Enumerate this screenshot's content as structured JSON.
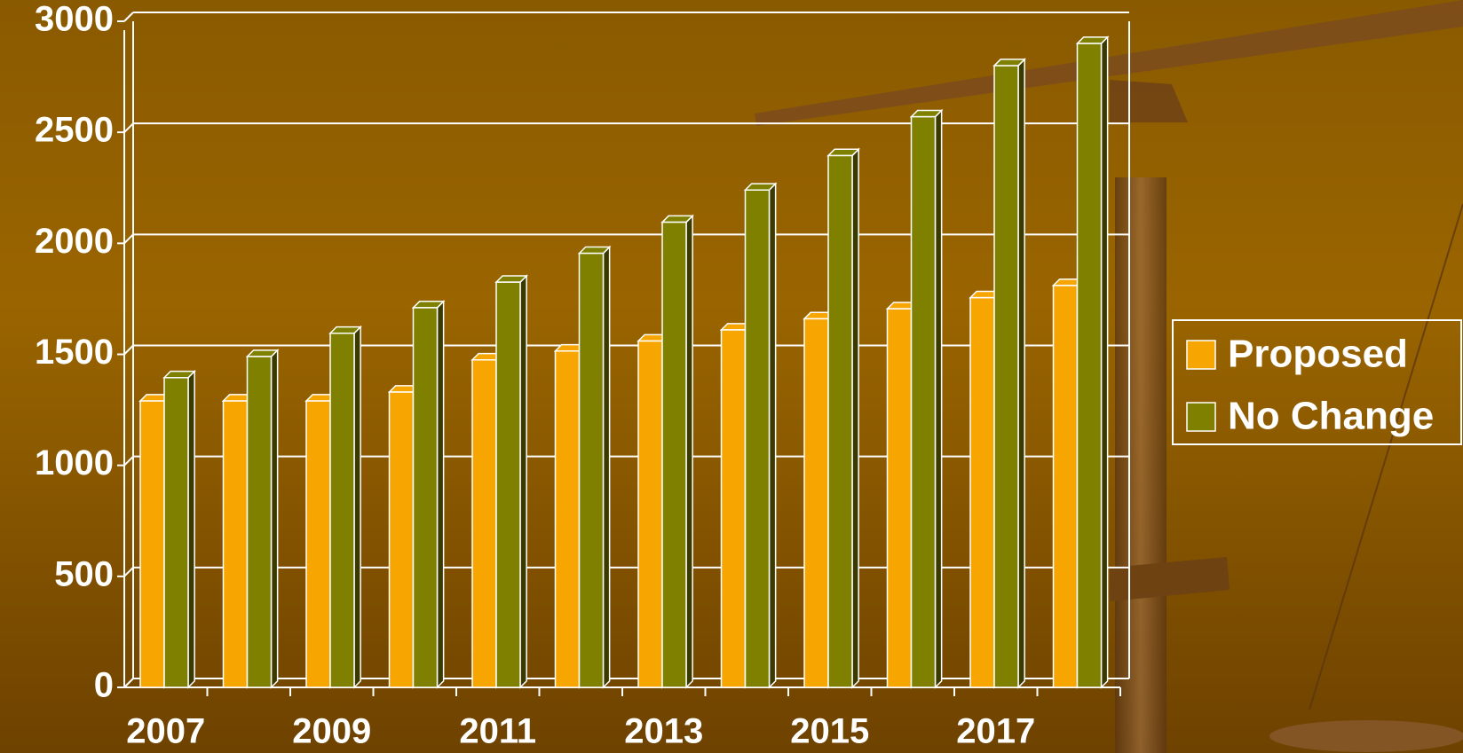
{
  "chart_data": {
    "type": "bar",
    "categories": [
      "2007",
      null,
      "2009",
      null,
      "2011",
      null,
      "2013",
      null,
      "2015",
      null,
      "2017",
      null
    ],
    "series": [
      {
        "name": "Proposed",
        "color": "#f7a500",
        "values": [
          1290,
          1290,
          1290,
          1330,
          1475,
          1515,
          1560,
          1610,
          1660,
          1705,
          1755,
          1810
        ]
      },
      {
        "name": "No Change",
        "color": "#7f8000",
        "values": [
          1395,
          1490,
          1595,
          1710,
          1825,
          1955,
          2095,
          2240,
          2395,
          2570,
          2800,
          2900
        ]
      }
    ],
    "ylim": [
      0,
      3000
    ],
    "yticks": [
      0,
      500,
      1000,
      1500,
      2000,
      2500,
      3000
    ],
    "grid": true,
    "legend": "right"
  }
}
